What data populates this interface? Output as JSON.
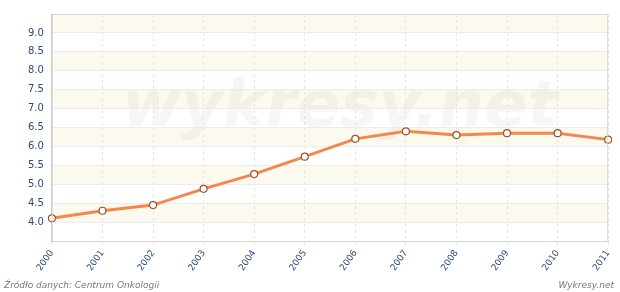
{
  "chart_data": {
    "type": "line",
    "categories": [
      "2000",
      "2001",
      "2002",
      "2003",
      "2004",
      "2005",
      "2006",
      "2007",
      "2008",
      "2009",
      "2010",
      "2011"
    ],
    "values": [
      4.1,
      4.3,
      4.45,
      4.88,
      5.27,
      5.73,
      6.2,
      6.4,
      6.3,
      6.35,
      6.35,
      6.18
    ],
    "color": "#f4874b",
    "marker": "circle",
    "ylim": [
      3.5,
      9.5
    ],
    "yticks": [
      {
        "value": 4,
        "label": "4.0"
      },
      {
        "value": 4.5,
        "label": "4.5"
      },
      {
        "value": 5,
        "label": "5.0"
      },
      {
        "value": 5.5,
        "label": "5.5"
      },
      {
        "value": 6,
        "label": "6.0"
      },
      {
        "value": 6.5,
        "label": "6.5"
      },
      {
        "value": 7,
        "label": "7.0"
      },
      {
        "value": 7.5,
        "label": "7.5"
      },
      {
        "value": 8,
        "label": "8.0"
      },
      {
        "value": 8.5,
        "label": "8.5"
      },
      {
        "value": 9,
        "label": "9.0"
      }
    ],
    "grid": true,
    "annotations": [
      "Źródło danych: Centrum Onkologii",
      "Wykresy.net",
      "wykresy.net"
    ]
  }
}
